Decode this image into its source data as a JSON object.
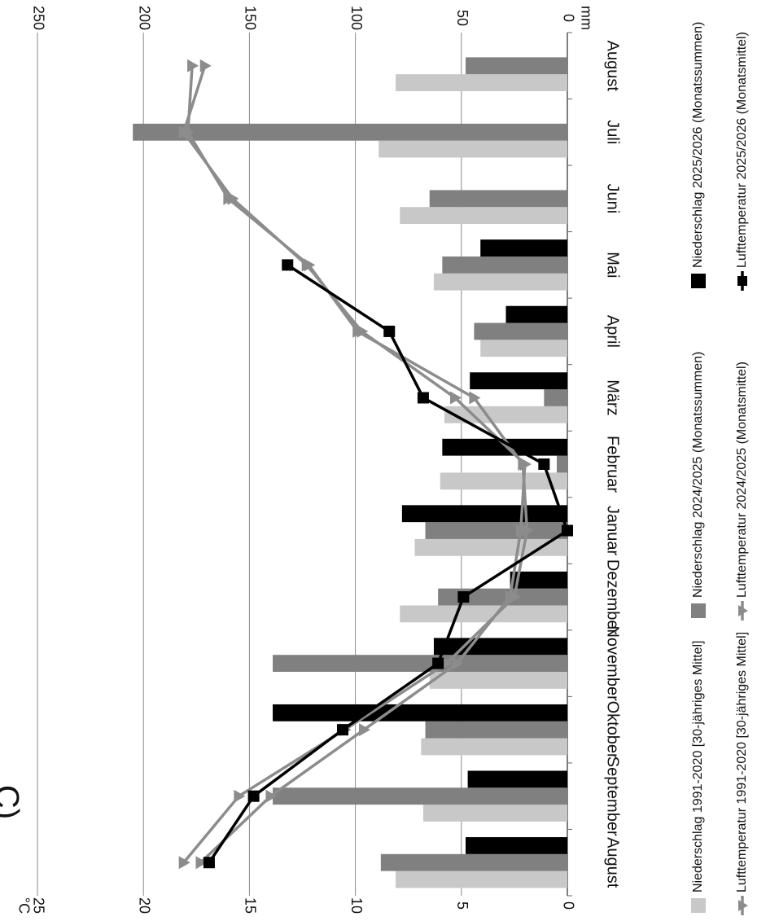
{
  "chart_data": {
    "type": "bar",
    "categories": [
      "August",
      "September",
      "Oktober",
      "November",
      "Dezember",
      "Januar",
      "Februar",
      "März",
      "April",
      "Mai",
      "Juni",
      "Juli",
      "August"
    ],
    "precip_axis": {
      "unit": "mm",
      "range": [
        0,
        250
      ],
      "ticks": [
        "0",
        "50",
        "100",
        "150",
        "200",
        "250"
      ]
    },
    "temp_axis": {
      "unit": "°C",
      "range": [
        0,
        25
      ],
      "ticks": [
        "0",
        "5",
        "10",
        "15",
        "20",
        "25"
      ]
    },
    "grid": true,
    "legend_position": "bottom",
    "series": [
      {
        "name": "Niederschlag 1991-2020 [30-jähriges Mittel]",
        "kind": "bar",
        "axis": "precip",
        "color": "#c8c8c8",
        "values": [
          81,
          68,
          69,
          65,
          79,
          72,
          60,
          58,
          41,
          63,
          79,
          89,
          81
        ]
      },
      {
        "name": "Niederschlag 2024/2025 (Monatssummen)",
        "kind": "bar",
        "axis": "precip",
        "color": "#808080",
        "values": [
          88,
          139,
          67,
          139,
          61,
          67,
          5,
          11,
          44,
          59,
          65,
          205,
          48
        ]
      },
      {
        "name": "Niederschlag 2025/2026 (Monatssummen)",
        "kind": "bar",
        "axis": "precip",
        "color": "#000000",
        "values": [
          48,
          47,
          139,
          63,
          27,
          78,
          59,
          46,
          29,
          41,
          null,
          null,
          null
        ]
      },
      {
        "name": "Lufttemperatur 1991-2020 [30-jähriges Mittel]",
        "kind": "line",
        "axis": "temp",
        "color": "#8c8c8c",
        "marker": "triangle",
        "values": [
          18.1,
          15.5,
          10.5,
          5.7,
          2.5,
          1.9,
          2.1,
          4.4,
          9.9,
          12.2,
          16.0,
          17.9,
          17.7
        ]
      },
      {
        "name": "Lufttemperatur 2024/2025 (Monatsmittel)",
        "kind": "line",
        "axis": "temp",
        "color": "#8c8c8c",
        "marker": "triangle",
        "values": [
          17.3,
          14.0,
          9.6,
          5.2,
          2.7,
          2.2,
          2.0,
          5.3,
          9.7,
          12.3,
          15.8,
          18.1,
          17.1
        ]
      },
      {
        "name": "Lufttemperatur 2025/2026 (Monatsmittel)",
        "kind": "line",
        "axis": "temp",
        "color": "#000000",
        "marker": "square",
        "values": [
          16.9,
          14.8,
          10.6,
          6.1,
          4.9,
          0.0,
          1.1,
          6.8,
          8.4,
          13.2,
          null,
          null,
          null
        ]
      }
    ]
  },
  "text": {
    "corner_fragment": "C)"
  }
}
